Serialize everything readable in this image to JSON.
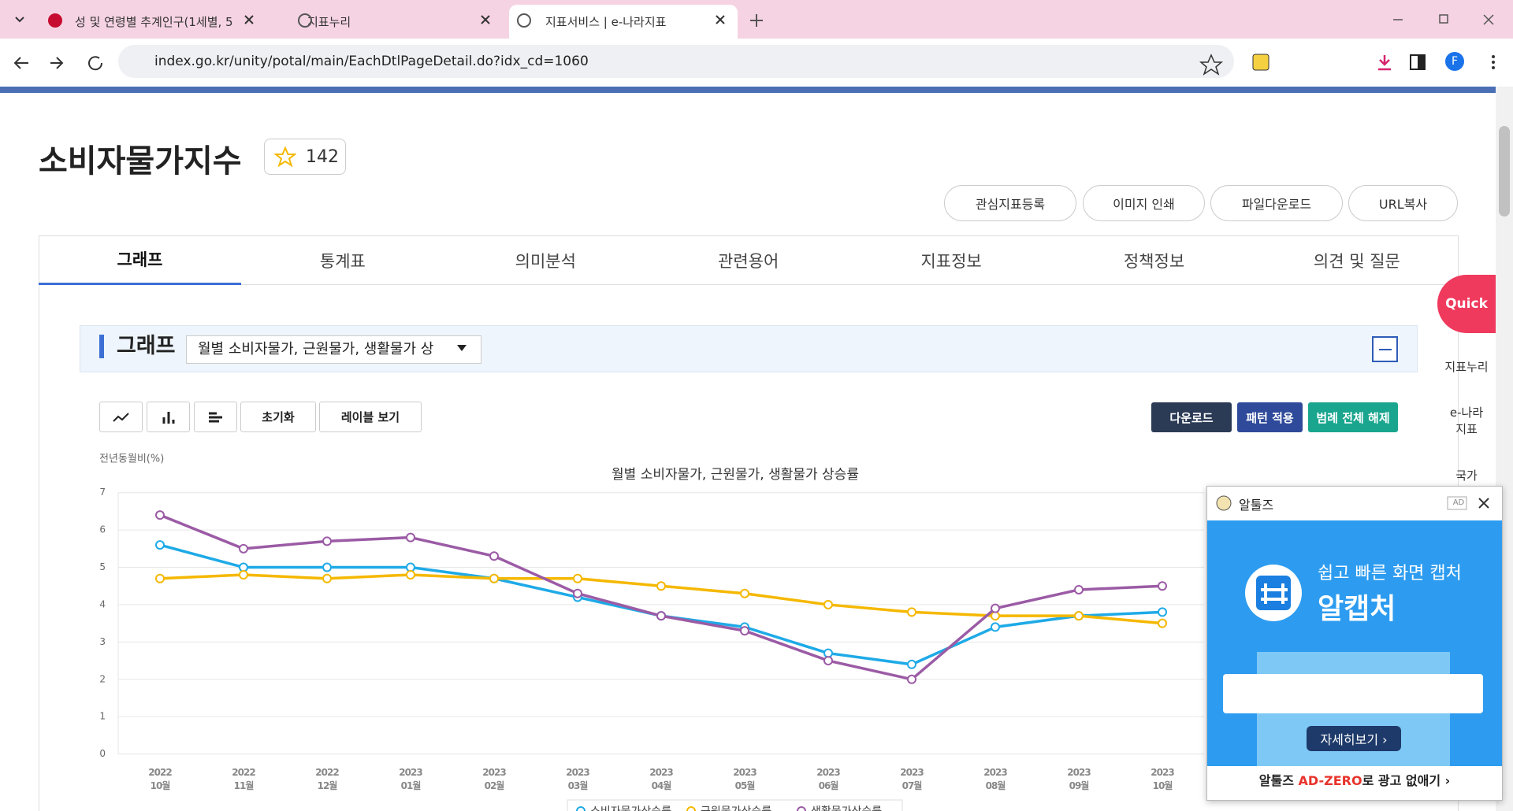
{
  "browser": {
    "tabs": [
      "성 및 연령별 추계인구(1세별, 5",
      "지표누리",
      "지표서비스 | e-나라지표"
    ],
    "url": "index.go.kr/unity/potal/main/EachDtlPageDetail.do?idx_cd=1060",
    "profile": "F"
  },
  "page": {
    "title": "소비자물가지수",
    "favorites": 142,
    "actions": [
      "관심지표등록",
      "이미지 인쇄",
      "파일다운로드",
      "URL복사"
    ],
    "tabs": [
      "그래프",
      "통계표",
      "의미분석",
      "관련용어",
      "지표정보",
      "정책정보",
      "의견 및 질문"
    ],
    "section": "그래프",
    "select": "월별 소비자물가, 근원물가, 생활물가 상",
    "tools": [
      "초기화",
      "레이블 보기"
    ],
    "buttons": [
      "다운로드",
      "패턴 적용",
      "범례 전체 해제"
    ]
  },
  "quick": {
    "title": "Quick",
    "items": [
      "지표누리",
      "e-나라\n지표",
      "국가"
    ]
  },
  "ad": {
    "brand": "알툴즈",
    "badge": "AD",
    "headline": "쉽고 빠른 화면 캡처",
    "product": "알캡처",
    "cta": "자세히보기 ›",
    "footer": [
      "알툴즈 ",
      "AD-ZERO",
      "로 광고 없애기 ›"
    ]
  },
  "chart_data": {
    "type": "line",
    "title": "월별 소비자물가, 근원물가, 생활물가 상승률",
    "y_label": "전년동월비(%)",
    "categories": [
      "2022\n10월",
      "2022\n11월",
      "2022\n12월",
      "2023\n01월",
      "2023\n02월",
      "2023\n03월",
      "2023\n04월",
      "2023\n05월",
      "2023\n06월",
      "2023\n07월",
      "2023\n08월",
      "2023\n09월",
      "2023\n10월"
    ],
    "series": [
      {
        "name": "소비자물가상승률",
        "color": "#1eaae7",
        "values": [
          5.6,
          5.0,
          5.0,
          5.0,
          4.7,
          4.2,
          3.7,
          3.4,
          2.7,
          2.4,
          3.4,
          3.7,
          3.8
        ]
      },
      {
        "name": "근원물가상승률",
        "color": "#f5b800",
        "values": [
          4.7,
          4.8,
          4.7,
          4.8,
          4.7,
          4.7,
          4.5,
          4.3,
          4.0,
          3.8,
          3.7,
          3.7,
          3.5
        ]
      },
      {
        "name": "생활물가상승률",
        "color": "#9b5ba5",
        "values": [
          6.4,
          5.5,
          5.7,
          5.8,
          5.3,
          4.3,
          3.7,
          3.3,
          2.5,
          2.0,
          3.9,
          4.4,
          4.5
        ]
      }
    ],
    "ylim": [
      0,
      7
    ],
    "yticks": [
      0,
      1,
      2,
      3,
      4,
      5,
      6,
      7
    ],
    "grid": true
  }
}
